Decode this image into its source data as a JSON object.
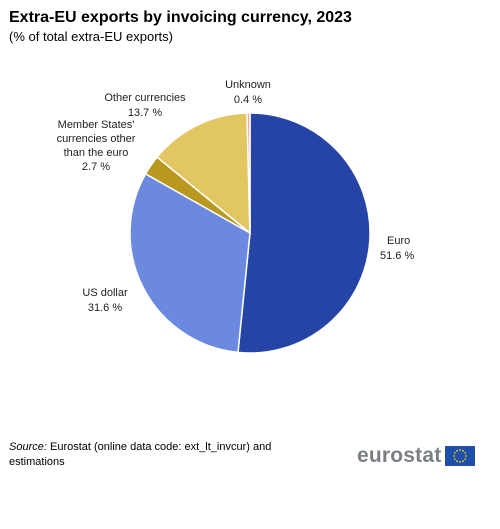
{
  "header": {
    "title": "Extra-EU exports by invoicing currency, 2023",
    "subtitle": "(% of total extra-EU exports)"
  },
  "chart_data": {
    "type": "pie",
    "title": "Extra-EU exports by invoicing currency, 2023",
    "subtitle": "(% of total extra-EU exports)",
    "unit": "%",
    "slices": [
      {
        "label": "Euro",
        "value": 51.6,
        "color": "#2644a6"
      },
      {
        "label": "US dollar",
        "value": 31.6,
        "color": "#6c89e0"
      },
      {
        "label": "Member States' currencies other than the euro",
        "value": 2.7,
        "color": "#b8981e"
      },
      {
        "label": "Other currencies",
        "value": 13.7,
        "color": "#e2c661"
      },
      {
        "label": "Unknown",
        "value": 0.4,
        "color": "#f0a49c"
      }
    ],
    "start_angle_deg": 0,
    "direction": "clockwise",
    "legend": "none"
  },
  "labels": {
    "euro": {
      "name": "Euro",
      "value": "51.6 %"
    },
    "us_dollar": {
      "name": "US dollar",
      "value": "31.6 %"
    },
    "member_states": {
      "line1": "Member States'",
      "line2": "currencies other",
      "line3": "than the euro",
      "value": "2.7 %"
    },
    "other": {
      "name": "Other currencies",
      "value": "13.7 %"
    },
    "unknown": {
      "name": "Unknown",
      "value": "0.4 %"
    }
  },
  "footer": {
    "source_label": "Source:",
    "source_text": "Eurostat (online data code: ext_lt_invcur) and estimations",
    "logo_text": "eurostat"
  }
}
